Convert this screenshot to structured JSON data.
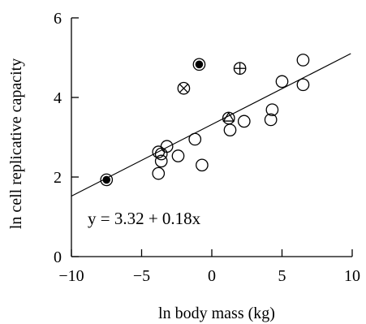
{
  "chart_data": {
    "type": "scatter",
    "xlabel": "ln body mass (kg)",
    "ylabel": "ln cell replicative capacity",
    "xlim": [
      -10,
      10
    ],
    "ylim": [
      0,
      6
    ],
    "xticks": [
      -10,
      -5,
      0,
      5,
      10
    ],
    "yticks": [
      0,
      2,
      4,
      6
    ],
    "x_tick_labels": [
      "−10",
      "−5",
      "0",
      "5",
      "10"
    ],
    "y_tick_labels": [
      "0",
      "2",
      "4",
      "6"
    ],
    "equation_text": "y = 3.32 + 0.18x",
    "regression": {
      "intercept": 3.32,
      "slope": 0.18,
      "x_range": [
        -10,
        9.9
      ]
    },
    "grid": false,
    "points": [
      {
        "x": -7.5,
        "y": 1.93,
        "marker": "filled-circle"
      },
      {
        "x": -3.8,
        "y": 2.63,
        "marker": "circle"
      },
      {
        "x": -3.6,
        "y": 2.58,
        "marker": "circle"
      },
      {
        "x": -3.6,
        "y": 2.4,
        "marker": "circle"
      },
      {
        "x": -3.8,
        "y": 2.09,
        "marker": "circle"
      },
      {
        "x": -3.2,
        "y": 2.77,
        "marker": "circle"
      },
      {
        "x": -2.4,
        "y": 2.53,
        "marker": "circle"
      },
      {
        "x": -1.2,
        "y": 2.95,
        "marker": "circle"
      },
      {
        "x": -0.7,
        "y": 2.3,
        "marker": "circle"
      },
      {
        "x": -2.0,
        "y": 4.23,
        "marker": "cross-circle"
      },
      {
        "x": -0.9,
        "y": 4.83,
        "marker": "filled-circle"
      },
      {
        "x": 2.0,
        "y": 4.73,
        "marker": "plus-circle"
      },
      {
        "x": 1.2,
        "y": 3.48,
        "marker": "triangle-circle"
      },
      {
        "x": 1.3,
        "y": 3.18,
        "marker": "circle"
      },
      {
        "x": 2.3,
        "y": 3.4,
        "marker": "circle"
      },
      {
        "x": 4.2,
        "y": 3.44,
        "marker": "circle"
      },
      {
        "x": 4.3,
        "y": 3.69,
        "marker": "circle"
      },
      {
        "x": 5.0,
        "y": 4.4,
        "marker": "circle"
      },
      {
        "x": 6.5,
        "y": 4.32,
        "marker": "circle"
      },
      {
        "x": 6.5,
        "y": 4.94,
        "marker": "circle"
      }
    ]
  }
}
